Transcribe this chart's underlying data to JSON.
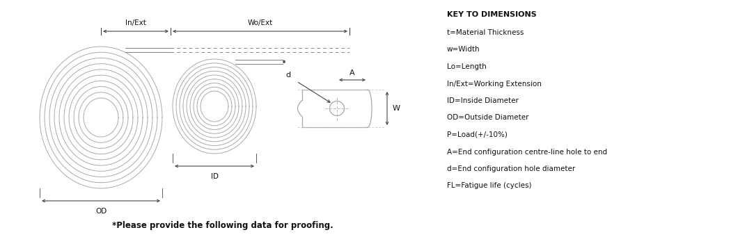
{
  "background_color": "#ffffff",
  "line_color": "#aaaaaa",
  "dim_line_color": "#444444",
  "text_color": "#111111",
  "title_text": "KEY TO DIMENSIONS",
  "key_lines": [
    "t=Material Thickness",
    "w=Width",
    "Lo=Length",
    "In/Ext=Working Extension",
    "ID=Inside Diameter",
    "OD=Outside Diameter",
    "P=Load(+/-10%)",
    "A=End configuration centre-line hole to end",
    "d=End configuration hole diameter",
    "FL=Fatigue life (cycles)"
  ],
  "footer_text": "*Please provide the following data for proofing.",
  "label_od": "OD",
  "label_id": "ID",
  "label_in_ext": "In/Ext",
  "label_wo_ext": "Wo/Ext",
  "label_a": "A",
  "label_d": "d",
  "label_w": "W"
}
